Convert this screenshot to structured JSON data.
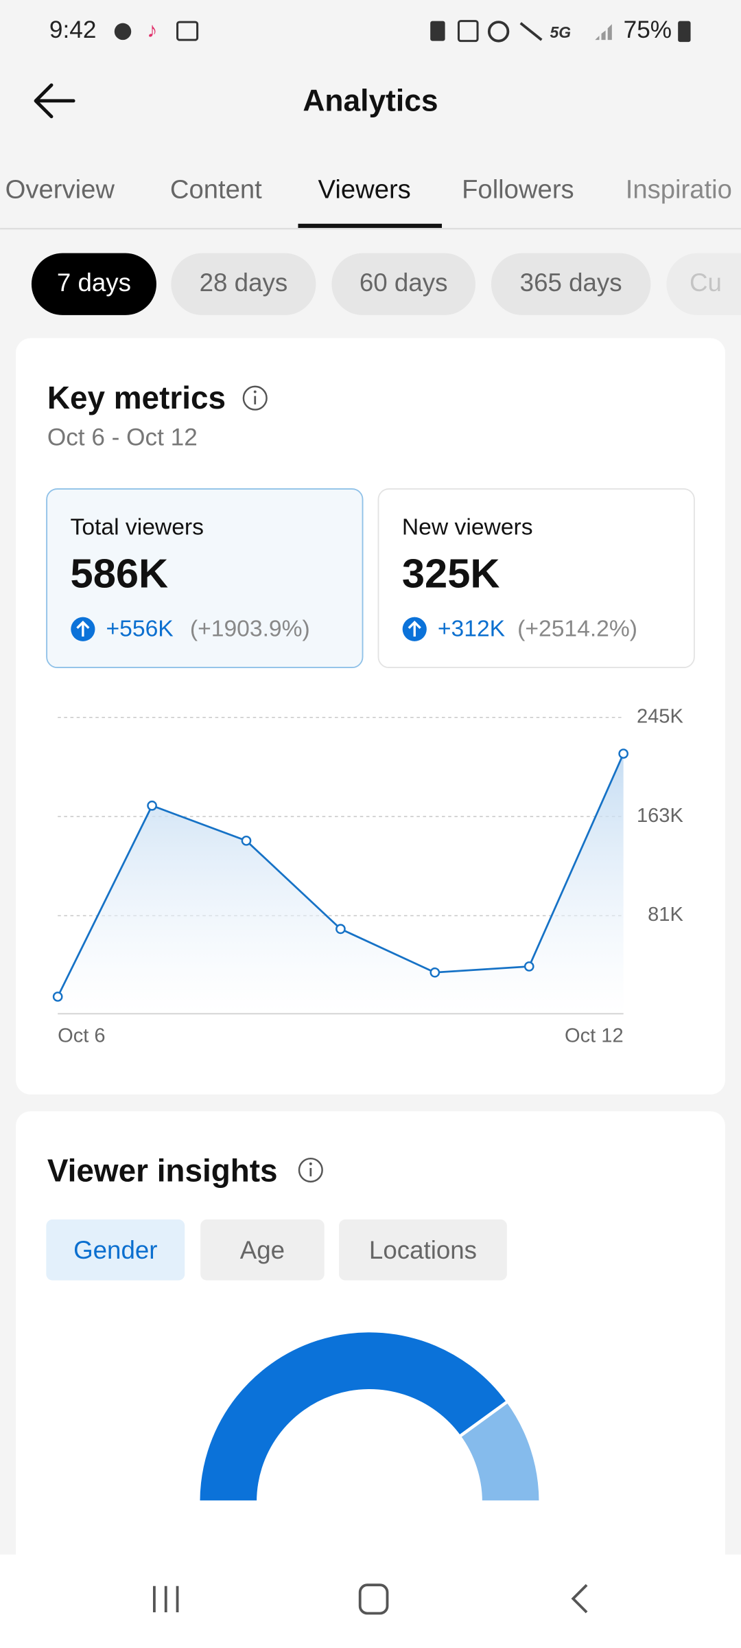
{
  "status_bar": {
    "time": "9:42",
    "battery": "75%"
  },
  "header": {
    "title": "Analytics"
  },
  "tabs": [
    "Overview",
    "Content",
    "Viewers",
    "Followers",
    "Inspiratio"
  ],
  "periods": [
    "7 days",
    "28 days",
    "60 days",
    "365 days",
    "Cu"
  ],
  "key_metrics": {
    "title": "Key metrics",
    "date_range": "Oct 6 - Oct 12",
    "cards": [
      {
        "label": "Total viewers",
        "value": "586K",
        "change": "+556K",
        "percent": "(+1903.9%)"
      },
      {
        "label": "New viewers",
        "value": "325K",
        "change": "+312K",
        "percent": "(+2514.2%)"
      }
    ]
  },
  "viewer_insights": {
    "title": "Viewer insights",
    "tabs": [
      "Gender",
      "Age",
      "Locations"
    ]
  },
  "chart_data": [
    {
      "type": "line",
      "categories": [
        "Oct 6",
        null,
        null,
        null,
        null,
        null,
        "Oct 12"
      ],
      "series": [
        {
          "color": "#1672c6",
          "values": [
            14000,
            172000,
            143000,
            70000,
            34000,
            39000,
            215000
          ]
        }
      ],
      "ylim": [
        0,
        245000
      ],
      "yticks": [
        {
          "value": 81000,
          "label": "81K"
        },
        {
          "value": 163000,
          "label": "163K"
        },
        {
          "value": 245000,
          "label": "245K"
        }
      ],
      "grid": true
    },
    {
      "type": "donut",
      "values": [
        80,
        20
      ],
      "colors": [
        "#0b72d9",
        "#85bbec"
      ]
    }
  ]
}
